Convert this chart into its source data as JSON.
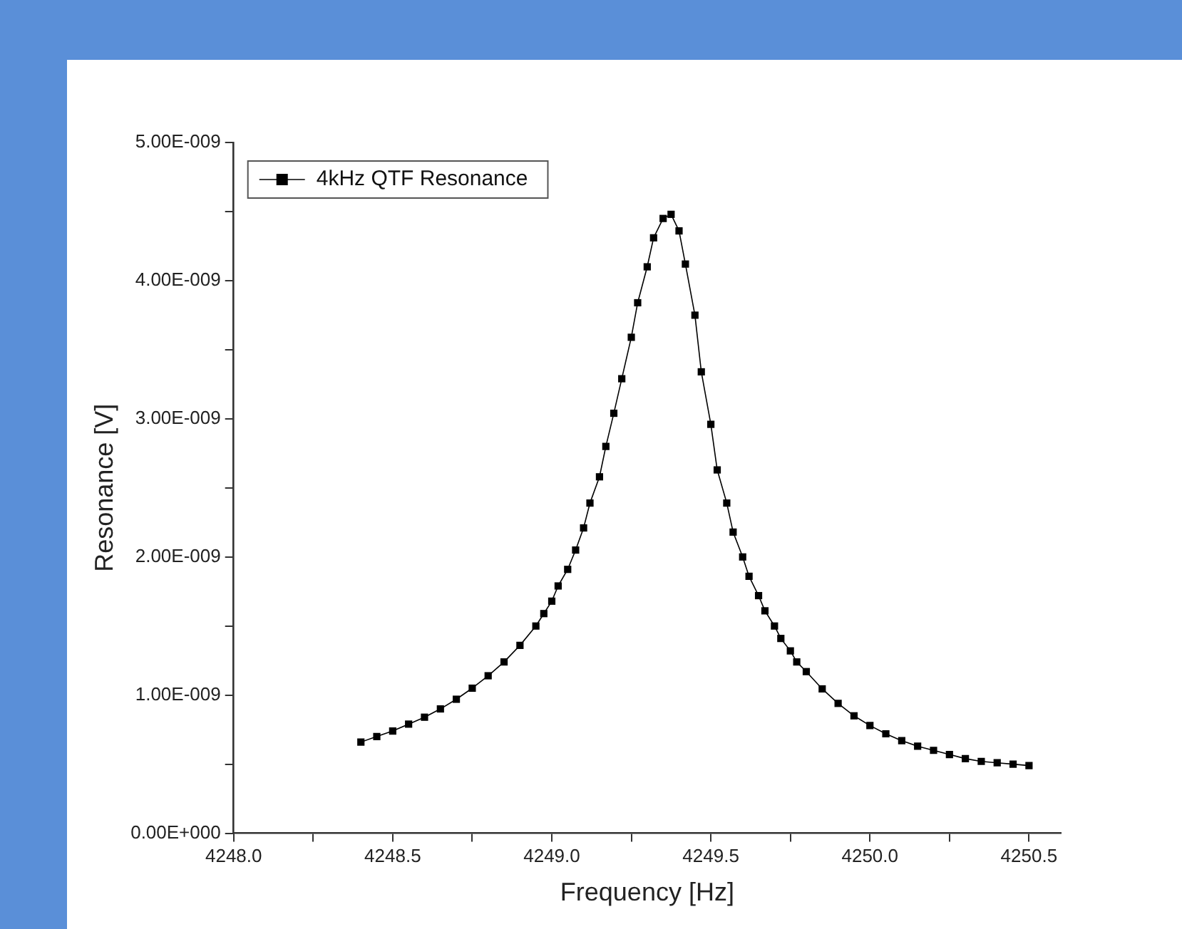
{
  "chart_data": {
    "type": "line",
    "xlabel": "Frequency [Hz]",
    "ylabel": "Resonance [V]",
    "xlim": [
      4248.0,
      4250.6
    ],
    "xticks": [
      {
        "value": 4248.0,
        "label": "4248.0"
      },
      {
        "value": 4248.25,
        "label": null
      },
      {
        "value": 4248.5,
        "label": "4248.5"
      },
      {
        "value": 4248.75,
        "label": null
      },
      {
        "value": 4249.0,
        "label": "4249.0"
      },
      {
        "value": 4249.25,
        "label": null
      },
      {
        "value": 4249.5,
        "label": "4249.5"
      },
      {
        "value": 4249.75,
        "label": null
      },
      {
        "value": 4250.0,
        "label": "4250.0"
      },
      {
        "value": 4250.25,
        "label": null
      },
      {
        "value": 4250.5,
        "label": "4250.5"
      }
    ],
    "ylim": [
      0,
      5e-09
    ],
    "yticks": [
      {
        "value": 0,
        "label": "0.00E+000"
      },
      {
        "value": 5e-10,
        "label": null
      },
      {
        "value": 1e-09,
        "label": "1.00E-009"
      },
      {
        "value": 1.5e-09,
        "label": null
      },
      {
        "value": 2e-09,
        "label": "2.00E-009"
      },
      {
        "value": 2.5e-09,
        "label": null
      },
      {
        "value": 3e-09,
        "label": "3.00E-009"
      },
      {
        "value": 3.5e-09,
        "label": null
      },
      {
        "value": 4e-09,
        "label": "4.00E-009"
      },
      {
        "value": 4.5e-09,
        "label": null
      },
      {
        "value": 5e-09,
        "label": "5.00E-009"
      }
    ],
    "grid": false,
    "legend": "top left",
    "marker": "square",
    "line_style": "solid",
    "series": [
      {
        "name": "4kHz QTF Resonance",
        "color": "#000000",
        "x": [
          4248.4,
          4248.45,
          4248.5,
          4248.55,
          4248.6,
          4248.65,
          4248.7,
          4248.75,
          4248.8,
          4248.85,
          4248.9,
          4248.95,
          4248.975,
          4249.0,
          4249.02,
          4249.05,
          4249.075,
          4249.1,
          4249.12,
          4249.15,
          4249.17,
          4249.195,
          4249.22,
          4249.25,
          4249.27,
          4249.3,
          4249.32,
          4249.35,
          4249.375,
          4249.4,
          4249.42,
          4249.45,
          4249.47,
          4249.5,
          4249.52,
          4249.55,
          4249.57,
          4249.6,
          4249.62,
          4249.65,
          4249.67,
          4249.7,
          4249.72,
          4249.75,
          4249.77,
          4249.8,
          4249.85,
          4249.9,
          4249.95,
          4250.0,
          4250.05,
          4250.1,
          4250.15,
          4250.2,
          4250.25,
          4250.3,
          4250.35,
          4250.4,
          4250.45,
          4250.5
        ],
        "values": [
          6.6e-10,
          7e-10,
          7.4e-10,
          7.9e-10,
          8.4e-10,
          9e-10,
          9.7e-10,
          1.05e-09,
          1.14e-09,
          1.24e-09,
          1.36e-09,
          1.5e-09,
          1.59e-09,
          1.68e-09,
          1.79e-09,
          1.91e-09,
          2.05e-09,
          2.21e-09,
          2.39e-09,
          2.58e-09,
          2.8e-09,
          3.04e-09,
          3.29e-09,
          3.59e-09,
          3.84e-09,
          4.1e-09,
          4.31e-09,
          4.45e-09,
          4.48e-09,
          4.36e-09,
          4.12e-09,
          3.75e-09,
          3.34e-09,
          2.96e-09,
          2.63e-09,
          2.39e-09,
          2.18e-09,
          2e-09,
          1.86e-09,
          1.72e-09,
          1.61e-09,
          1.5e-09,
          1.41e-09,
          1.32e-09,
          1.24e-09,
          1.17e-09,
          1.045e-09,
          9.4e-10,
          8.5e-10,
          7.8e-10,
          7.2e-10,
          6.7e-10,
          6.3e-10,
          6e-10,
          5.7e-10,
          5.4e-10,
          5.2e-10,
          5.1e-10,
          5e-10,
          4.9e-10
        ]
      }
    ]
  }
}
